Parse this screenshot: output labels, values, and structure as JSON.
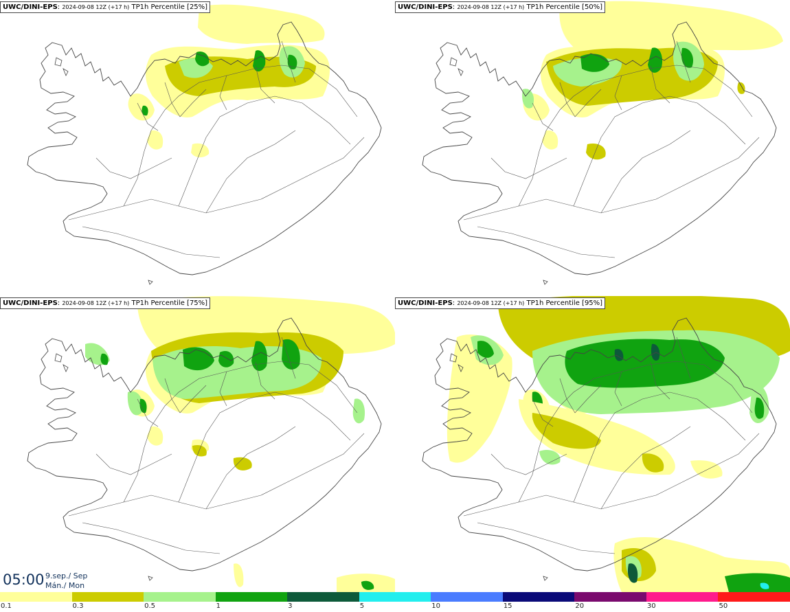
{
  "panels": [
    {
      "model": "UWC/DINI-EPS",
      "run": "2024-09-08 12Z (+17 h)",
      "field": "TP1h Percentile",
      "percentile": "[25%]"
    },
    {
      "model": "UWC/DINI-EPS",
      "run": "2024-09-08 12Z (+17 h)",
      "field": "TP1h Percentile",
      "percentile": "[50%]"
    },
    {
      "model": "UWC/DINI-EPS",
      "run": "2024-09-08 12Z (+17 h)",
      "field": "TP1h Percentile",
      "percentile": "[75%]"
    },
    {
      "model": "UWC/DINI-EPS",
      "run": "2024-09-08 12Z (+17 h)",
      "field": "TP1h Percentile",
      "percentile": "[95%]"
    }
  ],
  "valid_time": {
    "time": "05:00",
    "date_line1": "9.sep./ Sep",
    "date_line2": "Mán./ Mon"
  },
  "legend": {
    "colors": [
      "#ffff9a",
      "#cccc00",
      "#a6f28c",
      "#10a310",
      "#0d5a3a",
      "#22eeee",
      "#4a7cff",
      "#0a0a78",
      "#7a0a6e",
      "#ff1a8c",
      "#ff1a1a"
    ],
    "tick_labels": [
      "0.1",
      "0.3",
      "0.5",
      "1",
      "3",
      "5",
      "10",
      "15",
      "20",
      "30",
      "50"
    ]
  },
  "map_colors": {
    "coast": "#444444",
    "roads": "#555555",
    "light": "#ffff9a",
    "olive": "#cccc00",
    "lightgreen": "#a6f28c",
    "green": "#10a310",
    "darkgreen": "#0d5a3a",
    "cyan": "#22eeee"
  }
}
